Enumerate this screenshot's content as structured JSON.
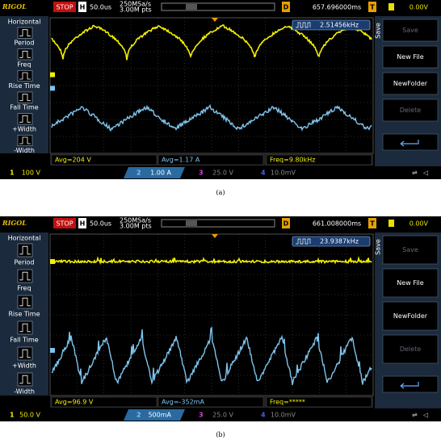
{
  "scopes": [
    {
      "brand": "RIGOL",
      "state": "STOP",
      "timebase_label": "H",
      "timebase": "50.0us",
      "sample_rate": "250MSa/s",
      "memory": "3.00M pts",
      "delay_label": "D",
      "delay": "657.696000ms",
      "trigger_label": "T",
      "trigger_level": "0.00V",
      "freq_counter": "2.51456kHz",
      "menu_title": "Horizontal",
      "left_menu": [
        "Period",
        "Freq",
        "Rise Time",
        "Fall Time",
        "+Width",
        "-Width"
      ],
      "menu_side": "Save",
      "right_menu": [
        "Save",
        "New File",
        "NewFolder",
        "Delete"
      ],
      "measurements": [
        "Avg=204 V",
        "Avg=1.17 A",
        "Freq=9.80kHz"
      ],
      "channels": [
        {
          "number": "1",
          "scale": "100 V"
        },
        {
          "number": "2",
          "scale": "1.00 A"
        },
        {
          "number": "3",
          "scale": "25.0 V"
        },
        {
          "number": "4",
          "scale": "10.0mV"
        }
      ],
      "caption": "(a)"
    },
    {
      "brand": "RIGOL",
      "state": "STOP",
      "timebase_label": "H",
      "timebase": "50.0us",
      "sample_rate": "250MSa/s",
      "memory": "3.00M pts",
      "delay_label": "D",
      "delay": "661.008000ms",
      "trigger_label": "T",
      "trigger_level": "0.00V",
      "freq_counter": "23.9387kHz",
      "menu_title": "Horizontal",
      "left_menu": [
        "Period",
        "Freq",
        "Rise Time",
        "Fall Time",
        "+Width",
        "-Width"
      ],
      "menu_side": "Save",
      "right_menu": [
        "Save",
        "New File",
        "NewFolder",
        "Delete"
      ],
      "measurements": [
        "Avg=96.9 V",
        "Avg=-352mA",
        "Freq=*****"
      ],
      "channels": [
        {
          "number": "1",
          "scale": "50.0 V"
        },
        {
          "number": "2",
          "scale": "500mA"
        },
        {
          "number": "3",
          "scale": "25.0 V"
        },
        {
          "number": "4",
          "scale": "10.0mV"
        }
      ],
      "caption": "(b)"
    }
  ]
}
